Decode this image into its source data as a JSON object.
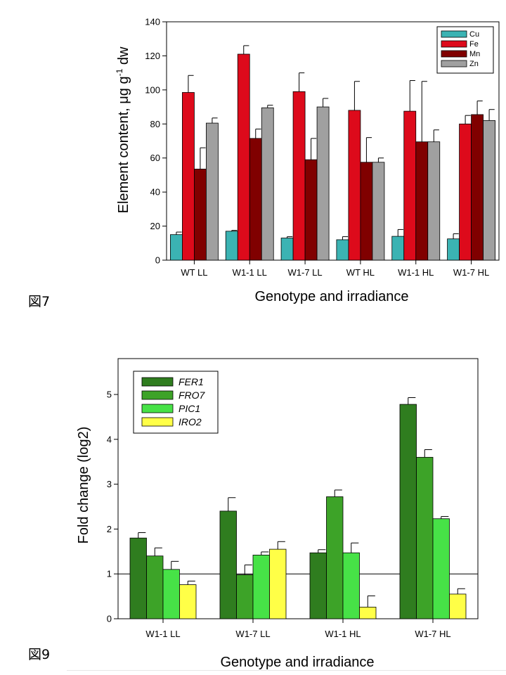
{
  "figure_labels": {
    "fig7": "図7",
    "fig9": "図9"
  },
  "chart_data": [
    {
      "type": "bar",
      "categories": [
        "WT LL",
        "W1-1 LL",
        "W1-7 LL",
        "WT HL",
        "W1-1 HL",
        "W1-7 HL"
      ],
      "series": [
        {
          "name": "Cu",
          "color": "#3bb3b3",
          "values": [
            15,
            17,
            13,
            12,
            14,
            12.5
          ],
          "errors": [
            1.5,
            0.5,
            0.8,
            1.8,
            4,
            3
          ]
        },
        {
          "name": "Fe",
          "color": "#dd0a1b",
          "values": [
            98.5,
            121,
            99,
            88,
            87.5,
            80
          ],
          "errors": [
            10,
            5,
            11,
            17,
            18,
            5
          ]
        },
        {
          "name": "Mn",
          "color": "#800000",
          "values": [
            53.5,
            71.5,
            59,
            57.5,
            69.5,
            85.5
          ],
          "errors": [
            12.5,
            5.5,
            12.5,
            14.5,
            35.5,
            8
          ]
        },
        {
          "name": "Zn",
          "color": "#a0a0a0",
          "values": [
            80.5,
            89.5,
            90,
            57.5,
            69.5,
            82
          ],
          "errors": [
            3,
            1.5,
            5,
            2.5,
            7,
            6.5
          ]
        }
      ],
      "ylim": [
        0,
        140
      ],
      "yticks": [
        "0",
        "20",
        "40",
        "60",
        "80",
        "100",
        "120",
        "140"
      ],
      "xlabel": "Genotype and irradiance",
      "ylabel": "Element content, μg g",
      "ylabel_sup": "-1",
      "ylabel_suffix": " dw",
      "legend": "top-right"
    },
    {
      "type": "bar",
      "categories": [
        "W1-1 LL",
        "W1-7 LL",
        "W1-1 HL",
        "W1-7 HL"
      ],
      "series": [
        {
          "name": "FER1",
          "color": "#2f7d1f",
          "values": [
            1.8,
            2.4,
            1.47,
            4.78
          ],
          "errors": [
            0.12,
            0.3,
            0.07,
            0.15
          ]
        },
        {
          "name": "FRO7",
          "color": "#3da328",
          "values": [
            1.4,
            0.98,
            2.72,
            3.6
          ],
          "errors": [
            0.18,
            0.22,
            0.15,
            0.17
          ]
        },
        {
          "name": "PIC1",
          "color": "#47e247",
          "values": [
            1.1,
            1.42,
            1.47,
            2.23
          ],
          "errors": [
            0.18,
            0.07,
            0.22,
            0.05
          ]
        },
        {
          "name": "IRO2",
          "color": "#ffff47",
          "values": [
            0.76,
            1.55,
            0.26,
            0.55
          ],
          "errors": [
            0.08,
            0.17,
            0.25,
            0.12
          ]
        }
      ],
      "ylim": [
        0,
        5.8
      ],
      "yticks": [
        "0",
        "1",
        "2",
        "3",
        "4",
        "5"
      ],
      "reference_line": 1,
      "xlabel": "Genotype and irradiance",
      "ylabel": "Fold change (log2)",
      "legend": "top-left"
    }
  ]
}
